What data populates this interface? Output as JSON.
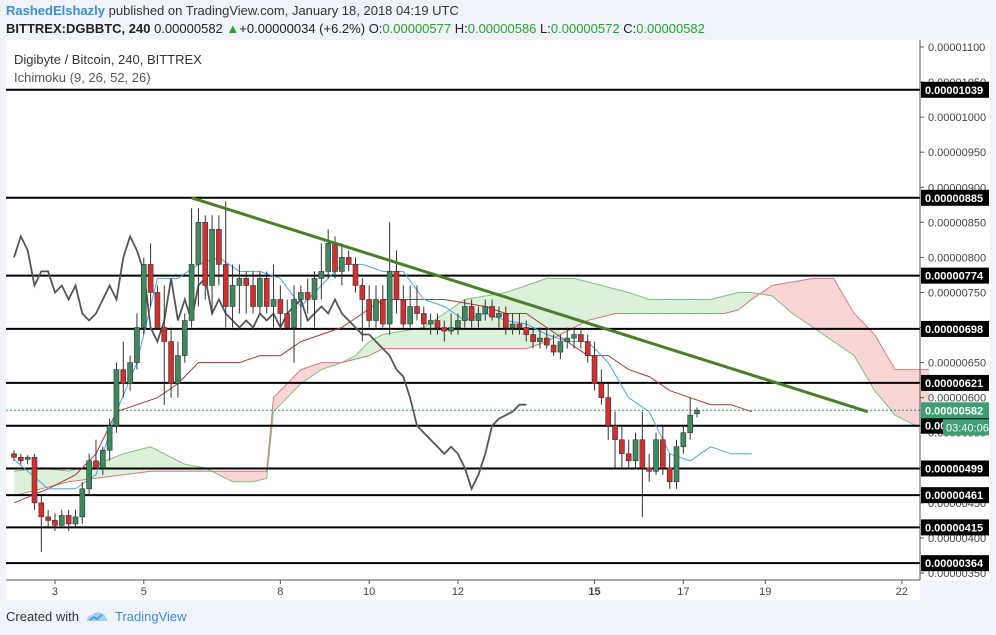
{
  "header": {
    "author": "RashedElshazly",
    "published_text": "published on TradingView.com, January 18, 2018 04:19 UTC",
    "symbol": "BITTREX:DGBBTC, 240",
    "last_price": "0.00000582",
    "change_arrow": "▲",
    "change": "+0.00000034 (+6.2%)",
    "o_label": "O:",
    "o_value": "0.00000577",
    "h_label": "H:",
    "h_value": "0.00000586",
    "l_label": "L:",
    "l_value": "0.00000572",
    "c_label": "C:",
    "c_value": "0.00000582"
  },
  "footer": {
    "created_with": "Created with",
    "brand": "TradingView"
  },
  "colors": {
    "bull": "#3d8b5c",
    "bear": "#d32f2f",
    "trend": "#4a7f2a",
    "conversion": "#4aa3e8",
    "base": "#a63a3a",
    "lagging": "#555555",
    "cloud_bull": "#d8eed6",
    "cloud_bear": "#f8d0d0"
  },
  "chart_data": {
    "type": "candlestick",
    "title": "Digibyte / Bitcoin, 240, BITTREX",
    "indicator": "Ichimoku (9, 26, 52, 26)",
    "y_tick_labels": [
      "0.00001100",
      "0.00001050",
      "0.00001000",
      "0.00000950",
      "0.00000900",
      "0.00000850",
      "0.00000800",
      "0.00000750",
      "0.00000700",
      "0.00000650",
      "0.00000600",
      "0.00000550",
      "0.00000500",
      "0.00000450",
      "0.00000400",
      "0.00000350"
    ],
    "y_ticks": [
      1100,
      1050,
      1000,
      950,
      900,
      850,
      800,
      750,
      700,
      650,
      600,
      550,
      500,
      450,
      400,
      350
    ],
    "y_range": [
      340,
      1110
    ],
    "x_labels": [
      {
        "label": "3",
        "i": 6
      },
      {
        "label": "5",
        "i": 19
      },
      {
        "label": "8",
        "i": 39
      },
      {
        "label": "10",
        "i": 52
      },
      {
        "label": "12",
        "i": 65
      },
      {
        "label": "15",
        "i": 85
      },
      {
        "label": "17",
        "i": 98
      },
      {
        "label": "19",
        "i": 110
      },
      {
        "label": "22",
        "i": 130
      }
    ],
    "horizontal_levels": [
      "0.00001039",
      "0.00000885",
      "0.00000774",
      "0.00000698",
      "0.00000621",
      "0.00000560",
      "0.00000499",
      "0.00000461",
      "0.00000415",
      "0.00000364"
    ],
    "level_values": [
      1039,
      885,
      774,
      698,
      621,
      560,
      499,
      461,
      415,
      364
    ],
    "last_price_label": "0.00000582",
    "last_price_value": 582,
    "countdown": "03:40:06",
    "trendline": {
      "from": {
        "i": 26,
        "y": 885
      },
      "to": {
        "i": 125,
        "y": 580
      }
    },
    "candles_ohlc": [
      [
        520,
        525,
        510,
        515
      ],
      [
        515,
        520,
        505,
        510
      ],
      [
        512,
        518,
        505,
        515
      ],
      [
        515,
        520,
        440,
        450
      ],
      [
        450,
        460,
        380,
        430
      ],
      [
        430,
        440,
        415,
        425
      ],
      [
        425,
        435,
        410,
        418
      ],
      [
        418,
        440,
        415,
        432
      ],
      [
        432,
        440,
        410,
        420
      ],
      [
        420,
        440,
        415,
        430
      ],
      [
        430,
        480,
        420,
        470
      ],
      [
        470,
        520,
        460,
        510
      ],
      [
        510,
        540,
        500,
        500
      ],
      [
        500,
        530,
        490,
        525
      ],
      [
        525,
        570,
        510,
        560
      ],
      [
        560,
        650,
        550,
        640
      ],
      [
        640,
        680,
        600,
        620
      ],
      [
        620,
        660,
        610,
        650
      ],
      [
        650,
        720,
        640,
        700
      ],
      [
        700,
        800,
        690,
        790
      ],
      [
        790,
        820,
        730,
        750
      ],
      [
        750,
        760,
        700,
        700
      ],
      [
        700,
        760,
        590,
        680
      ],
      [
        680,
        700,
        600,
        620
      ],
      [
        620,
        680,
        600,
        660
      ],
      [
        660,
        720,
        650,
        710
      ],
      [
        710,
        870,
        700,
        790
      ],
      [
        790,
        870,
        730,
        850
      ],
      [
        850,
        860,
        740,
        760
      ],
      [
        760,
        860,
        720,
        840
      ],
      [
        840,
        860,
        760,
        790
      ],
      [
        790,
        880,
        700,
        730
      ],
      [
        730,
        790,
        700,
        760
      ],
      [
        760,
        790,
        720,
        770
      ],
      [
        770,
        780,
        720,
        760
      ],
      [
        760,
        780,
        720,
        730
      ],
      [
        730,
        780,
        720,
        770
      ],
      [
        770,
        780,
        720,
        730
      ],
      [
        730,
        790,
        700,
        740
      ],
      [
        740,
        760,
        700,
        720
      ],
      [
        720,
        740,
        700,
        700
      ],
      [
        700,
        760,
        650,
        740
      ],
      [
        740,
        760,
        700,
        750
      ],
      [
        750,
        770,
        720,
        740
      ],
      [
        740,
        780,
        700,
        770
      ],
      [
        770,
        820,
        740,
        780
      ],
      [
        780,
        840,
        770,
        820
      ],
      [
        820,
        830,
        770,
        780
      ],
      [
        780,
        820,
        760,
        800
      ],
      [
        800,
        810,
        780,
        790
      ],
      [
        790,
        800,
        750,
        760
      ],
      [
        760,
        770,
        680,
        740
      ],
      [
        740,
        760,
        700,
        710
      ],
      [
        710,
        760,
        700,
        740
      ],
      [
        740,
        760,
        700,
        705
      ],
      [
        705,
        850,
        690,
        780
      ],
      [
        780,
        810,
        720,
        740
      ],
      [
        740,
        760,
        700,
        705
      ],
      [
        705,
        760,
        700,
        730
      ],
      [
        730,
        760,
        710,
        720
      ],
      [
        720,
        730,
        700,
        705
      ],
      [
        705,
        720,
        690,
        710
      ],
      [
        710,
        720,
        690,
        700
      ],
      [
        700,
        710,
        680,
        695
      ],
      [
        695,
        720,
        690,
        700
      ],
      [
        700,
        720,
        690,
        710
      ],
      [
        710,
        740,
        700,
        730
      ],
      [
        730,
        740,
        700,
        710
      ],
      [
        710,
        730,
        700,
        720
      ],
      [
        720,
        740,
        710,
        730
      ],
      [
        730,
        740,
        710,
        715
      ],
      [
        715,
        730,
        700,
        720
      ],
      [
        720,
        730,
        690,
        700
      ],
      [
        700,
        720,
        690,
        705
      ],
      [
        705,
        720,
        690,
        700
      ],
      [
        700,
        710,
        680,
        690
      ],
      [
        690,
        700,
        670,
        680
      ],
      [
        680,
        700,
        670,
        685
      ],
      [
        685,
        700,
        670,
        675
      ],
      [
        675,
        690,
        660,
        665
      ],
      [
        665,
        690,
        655,
        680
      ],
      [
        680,
        700,
        670,
        685
      ],
      [
        685,
        700,
        670,
        690
      ],
      [
        690,
        700,
        670,
        680
      ],
      [
        680,
        690,
        650,
        660
      ],
      [
        660,
        680,
        610,
        620
      ],
      [
        620,
        640,
        590,
        600
      ],
      [
        600,
        620,
        540,
        560
      ],
      [
        560,
        580,
        500,
        540
      ],
      [
        540,
        560,
        500,
        520
      ],
      [
        520,
        540,
        500,
        510
      ],
      [
        510,
        550,
        500,
        540
      ],
      [
        540,
        580,
        430,
        500
      ],
      [
        500,
        520,
        480,
        495
      ],
      [
        495,
        550,
        490,
        540
      ],
      [
        540,
        560,
        490,
        500
      ],
      [
        500,
        520,
        470,
        480
      ],
      [
        480,
        540,
        470,
        530
      ],
      [
        530,
        560,
        520,
        550
      ],
      [
        550,
        600,
        540,
        575
      ],
      [
        577,
        586,
        572,
        582
      ]
    ],
    "tenkan": [
      [
        0,
        512
      ],
      [
        5,
        470
      ],
      [
        9,
        470
      ],
      [
        12,
        490
      ],
      [
        15,
        580
      ],
      [
        18,
        650
      ],
      [
        21,
        770
      ],
      [
        24,
        770
      ],
      [
        27,
        790
      ],
      [
        30,
        800
      ],
      [
        33,
        780
      ],
      [
        36,
        780
      ],
      [
        39,
        770
      ],
      [
        42,
        730
      ],
      [
        45,
        760
      ],
      [
        48,
        790
      ],
      [
        51,
        790
      ],
      [
        54,
        780
      ],
      [
        57,
        780
      ],
      [
        60,
        740
      ],
      [
        63,
        730
      ],
      [
        66,
        710
      ],
      [
        69,
        720
      ],
      [
        72,
        710
      ],
      [
        75,
        705
      ],
      [
        78,
        690
      ],
      [
        81,
        680
      ],
      [
        84,
        680
      ],
      [
        87,
        650
      ],
      [
        90,
        600
      ],
      [
        93,
        580
      ],
      [
        96,
        520
      ],
      [
        99,
        510
      ],
      [
        102,
        530
      ],
      [
        105,
        520
      ],
      [
        108,
        520
      ]
    ],
    "kijun": [
      [
        0,
        450
      ],
      [
        5,
        470
      ],
      [
        9,
        490
      ],
      [
        12,
        520
      ],
      [
        15,
        580
      ],
      [
        18,
        590
      ],
      [
        21,
        600
      ],
      [
        24,
        620
      ],
      [
        27,
        650
      ],
      [
        30,
        650
      ],
      [
        33,
        650
      ],
      [
        36,
        660
      ],
      [
        39,
        660
      ],
      [
        42,
        680
      ],
      [
        45,
        690
      ],
      [
        48,
        700
      ],
      [
        51,
        720
      ],
      [
        54,
        740
      ],
      [
        57,
        740
      ],
      [
        60,
        740
      ],
      [
        63,
        740
      ],
      [
        66,
        735
      ],
      [
        69,
        730
      ],
      [
        72,
        720
      ],
      [
        75,
        720
      ],
      [
        78,
        700
      ],
      [
        81,
        680
      ],
      [
        84,
        660
      ],
      [
        87,
        660
      ],
      [
        90,
        640
      ],
      [
        93,
        630
      ],
      [
        96,
        610
      ],
      [
        99,
        600
      ],
      [
        102,
        590
      ],
      [
        105,
        590
      ],
      [
        108,
        580
      ]
    ],
    "span_a": [
      [
        0,
        495
      ],
      [
        4,
        500
      ],
      [
        8,
        495
      ],
      [
        12,
        505
      ],
      [
        16,
        520
      ],
      [
        20,
        530
      ],
      [
        22,
        520
      ],
      [
        25,
        505
      ],
      [
        28,
        500
      ],
      [
        30,
        490
      ],
      [
        32,
        480
      ],
      [
        35,
        480
      ],
      [
        37,
        485
      ],
      [
        38,
        580
      ],
      [
        40,
        600
      ],
      [
        42,
        620
      ],
      [
        45,
        640
      ],
      [
        48,
        650
      ],
      [
        50,
        660
      ],
      [
        52,
        680
      ],
      [
        54,
        690
      ],
      [
        57,
        695
      ],
      [
        60,
        700
      ],
      [
        63,
        720
      ],
      [
        66,
        740
      ],
      [
        69,
        745
      ],
      [
        72,
        750
      ],
      [
        75,
        760
      ],
      [
        78,
        770
      ],
      [
        80,
        770
      ],
      [
        82,
        770
      ],
      [
        84,
        765
      ],
      [
        86,
        760
      ],
      [
        88,
        755
      ],
      [
        90,
        750
      ],
      [
        93,
        740
      ],
      [
        96,
        740
      ],
      [
        99,
        740
      ],
      [
        102,
        740
      ],
      [
        104,
        745
      ],
      [
        106,
        750
      ],
      [
        108,
        750
      ],
      [
        111,
        745
      ],
      [
        114,
        720
      ],
      [
        117,
        700
      ],
      [
        120,
        680
      ],
      [
        123,
        660
      ],
      [
        126,
        610
      ],
      [
        129,
        575
      ],
      [
        132,
        560
      ],
      [
        134,
        555
      ]
    ],
    "span_b": [
      [
        0,
        460
      ],
      [
        4,
        470
      ],
      [
        8,
        480
      ],
      [
        12,
        485
      ],
      [
        16,
        490
      ],
      [
        20,
        495
      ],
      [
        22,
        495
      ],
      [
        25,
        495
      ],
      [
        28,
        495
      ],
      [
        30,
        495
      ],
      [
        32,
        495
      ],
      [
        35,
        495
      ],
      [
        37,
        495
      ],
      [
        38,
        600
      ],
      [
        40,
        620
      ],
      [
        42,
        640
      ],
      [
        45,
        650
      ],
      [
        48,
        650
      ],
      [
        50,
        655
      ],
      [
        52,
        660
      ],
      [
        54,
        670
      ],
      [
        57,
        670
      ],
      [
        60,
        670
      ],
      [
        63,
        670
      ],
      [
        66,
        670
      ],
      [
        69,
        670
      ],
      [
        72,
        670
      ],
      [
        75,
        670
      ],
      [
        78,
        680
      ],
      [
        80,
        690
      ],
      [
        82,
        700
      ],
      [
        84,
        710
      ],
      [
        86,
        715
      ],
      [
        88,
        720
      ],
      [
        90,
        720
      ],
      [
        93,
        720
      ],
      [
        96,
        720
      ],
      [
        99,
        720
      ],
      [
        102,
        720
      ],
      [
        104,
        720
      ],
      [
        106,
        725
      ],
      [
        108,
        740
      ],
      [
        111,
        760
      ],
      [
        114,
        765
      ],
      [
        117,
        770
      ],
      [
        120,
        770
      ],
      [
        123,
        720
      ],
      [
        126,
        690
      ],
      [
        129,
        640
      ],
      [
        132,
        640
      ],
      [
        134,
        640
      ]
    ],
    "chikou": [
      [
        0,
        800
      ],
      [
        1,
        830
      ],
      [
        2,
        810
      ],
      [
        3,
        760
      ],
      [
        4,
        780
      ],
      [
        5,
        780
      ],
      [
        6,
        750
      ],
      [
        7,
        760
      ],
      [
        8,
        740
      ],
      [
        9,
        760
      ],
      [
        10,
        720
      ],
      [
        11,
        710
      ],
      [
        12,
        720
      ],
      [
        13,
        740
      ],
      [
        14,
        760
      ],
      [
        15,
        740
      ],
      [
        16,
        800
      ],
      [
        17,
        830
      ],
      [
        18,
        810
      ],
      [
        19,
        780
      ],
      [
        20,
        700
      ],
      [
        21,
        680
      ],
      [
        22,
        710
      ],
      [
        23,
        770
      ],
      [
        24,
        710
      ],
      [
        25,
        740
      ],
      [
        26,
        710
      ],
      [
        27,
        760
      ],
      [
        28,
        770
      ],
      [
        29,
        720
      ],
      [
        30,
        740
      ],
      [
        31,
        720
      ],
      [
        32,
        710
      ],
      [
        33,
        700
      ],
      [
        34,
        710
      ],
      [
        35,
        700
      ],
      [
        36,
        720
      ],
      [
        37,
        710
      ],
      [
        38,
        720
      ],
      [
        39,
        700
      ],
      [
        40,
        720
      ],
      [
        41,
        730
      ],
      [
        42,
        740
      ],
      [
        43,
        710
      ],
      [
        44,
        720
      ],
      [
        45,
        730
      ],
      [
        46,
        720
      ],
      [
        47,
        740
      ],
      [
        48,
        720
      ],
      [
        49,
        710
      ],
      [
        50,
        700
      ],
      [
        51,
        690
      ],
      [
        52,
        690
      ],
      [
        53,
        680
      ],
      [
        54,
        670
      ],
      [
        55,
        660
      ],
      [
        56,
        640
      ],
      [
        57,
        630
      ],
      [
        58,
        600
      ],
      [
        59,
        560
      ],
      [
        60,
        550
      ],
      [
        61,
        540
      ],
      [
        62,
        530
      ],
      [
        63,
        520
      ],
      [
        64,
        530
      ],
      [
        65,
        520
      ],
      [
        66,
        500
      ],
      [
        67,
        470
      ],
      [
        68,
        490
      ],
      [
        69,
        520
      ],
      [
        70,
        560
      ],
      [
        71,
        570
      ],
      [
        72,
        575
      ],
      [
        73,
        580
      ],
      [
        74,
        590
      ],
      [
        75,
        590
      ]
    ]
  }
}
